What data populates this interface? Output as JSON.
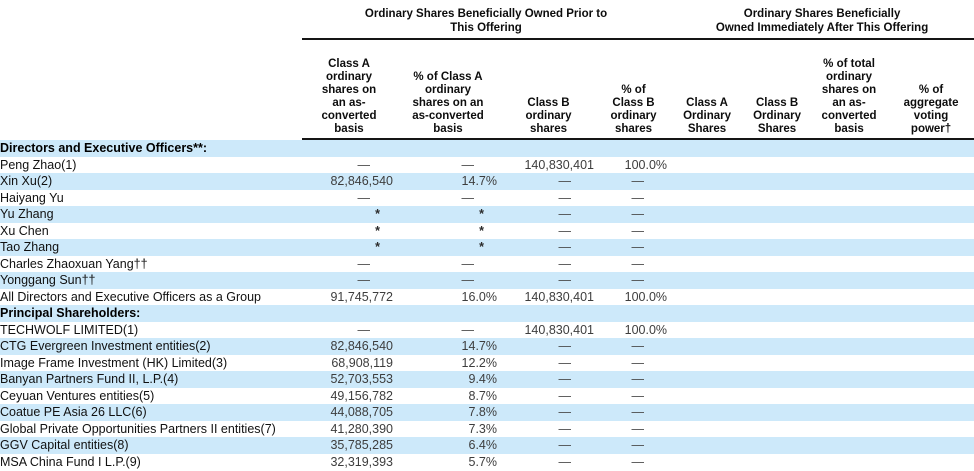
{
  "colors": {
    "row_highlight": "#cde9fa",
    "header_rule": "#151515"
  },
  "table": {
    "group_headers": [
      "Ordinary Shares Beneficially Owned Prior to\nThis Offering",
      "Ordinary Shares Beneficially\nOwned Immediately After This Offering"
    ],
    "columns": [
      "Class A\nordinary\nshares on\nan as-\nconverted\nbasis",
      "% of Class A\nordinary\nshares on an\nas-converted\nbasis",
      "Class B\nordinary\nshares",
      "% of\nClass B\nordinary\nshares",
      "Class A\nOrdinary\nShares",
      "Class B\nOrdinary\nShares",
      "% of total\nordinary\nshares on\nan as-\nconverted\nbasis",
      "% of\naggregate\nvoting\npower†"
    ],
    "rows": [
      {
        "label": "Directors and Executive Officers**:",
        "section": true,
        "highlight": true,
        "cells": [
          "",
          "",
          "",
          "",
          "",
          "",
          "",
          ""
        ]
      },
      {
        "label": "Peng Zhao(1)",
        "section": false,
        "highlight": false,
        "cells": [
          "—",
          "—",
          "140,830,401",
          "100.0%",
          "",
          "",
          "",
          ""
        ]
      },
      {
        "label": "Xin Xu(2)",
        "section": false,
        "highlight": true,
        "cells": [
          "82,846,540",
          "14.7%",
          "—",
          "—",
          "",
          "",
          "",
          ""
        ]
      },
      {
        "label": "Haiyang Yu",
        "section": false,
        "highlight": false,
        "cells": [
          "—",
          "—",
          "—",
          "—",
          "",
          "",
          "",
          ""
        ]
      },
      {
        "label": "Yu Zhang",
        "section": false,
        "highlight": true,
        "cells": [
          "*",
          "*",
          "—",
          "—",
          "",
          "",
          "",
          ""
        ]
      },
      {
        "label": "Xu Chen",
        "section": false,
        "highlight": false,
        "cells": [
          "*",
          "*",
          "—",
          "—",
          "",
          "",
          "",
          ""
        ]
      },
      {
        "label": "Tao Zhang",
        "section": false,
        "highlight": true,
        "cells": [
          "*",
          "*",
          "—",
          "—",
          "",
          "",
          "",
          ""
        ]
      },
      {
        "label": "Charles Zhaoxuan Yang††",
        "section": false,
        "highlight": false,
        "cells": [
          "—",
          "—",
          "—",
          "—",
          "",
          "",
          "",
          ""
        ]
      },
      {
        "label": "Yonggang Sun††",
        "section": false,
        "highlight": true,
        "cells": [
          "—",
          "—",
          "—",
          "—",
          "",
          "",
          "",
          ""
        ]
      },
      {
        "label": "All Directors and Executive Officers as a Group",
        "section": false,
        "highlight": false,
        "cells": [
          "91,745,772",
          "16.0%",
          "140,830,401",
          "100.0%",
          "",
          "",
          "",
          ""
        ]
      },
      {
        "label": "Principal Shareholders:",
        "section": true,
        "highlight": true,
        "cells": [
          "",
          "",
          "",
          "",
          "",
          "",
          "",
          ""
        ]
      },
      {
        "label": "TECHWOLF LIMITED(1)",
        "section": false,
        "highlight": false,
        "cells": [
          "—",
          "—",
          "140,830,401",
          "100.0%",
          "",
          "",
          "",
          ""
        ]
      },
      {
        "label": "CTG Evergreen Investment entities(2)",
        "section": false,
        "highlight": true,
        "cells": [
          "82,846,540",
          "14.7%",
          "—",
          "—",
          "",
          "",
          "",
          ""
        ]
      },
      {
        "label": "Image Frame Investment (HK) Limited(3)",
        "section": false,
        "highlight": false,
        "cells": [
          "68,908,119",
          "12.2%",
          "—",
          "—",
          "",
          "",
          "",
          ""
        ]
      },
      {
        "label": "Banyan Partners Fund II, L.P.(4)",
        "section": false,
        "highlight": true,
        "cells": [
          "52,703,553",
          "9.4%",
          "—",
          "—",
          "",
          "",
          "",
          ""
        ]
      },
      {
        "label": "Ceyuan Ventures entities(5)",
        "section": false,
        "highlight": false,
        "cells": [
          "49,156,782",
          "8.7%",
          "—",
          "—",
          "",
          "",
          "",
          ""
        ]
      },
      {
        "label": "Coatue PE Asia 26 LLC(6)",
        "section": false,
        "highlight": true,
        "cells": [
          "44,088,705",
          "7.8%",
          "—",
          "—",
          "",
          "",
          "",
          ""
        ]
      },
      {
        "label": "Global Private Opportunities Partners II entities(7)",
        "section": false,
        "highlight": false,
        "cells": [
          "41,280,390",
          "7.3%",
          "—",
          "—",
          "",
          "",
          "",
          ""
        ]
      },
      {
        "label": "GGV Capital entities(8)",
        "section": false,
        "highlight": true,
        "cells": [
          "35,785,285",
          "6.4%",
          "—",
          "—",
          "",
          "",
          "",
          ""
        ]
      },
      {
        "label": "MSA China Fund I L.P.(9)",
        "section": false,
        "highlight": false,
        "cells": [
          "32,319,393",
          "5.7%",
          "—",
          "—",
          "",
          "",
          "",
          ""
        ]
      }
    ]
  }
}
